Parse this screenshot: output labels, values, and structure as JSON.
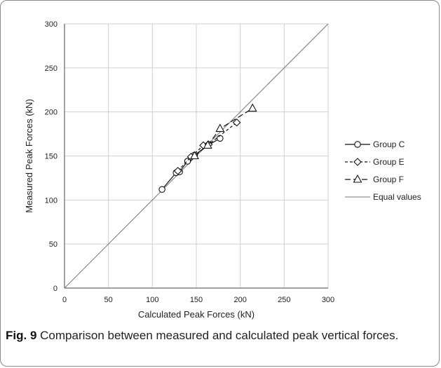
{
  "caption": {
    "label": "Fig. 9",
    "text": "Comparison between measured and calculated peak vertical forces."
  },
  "chart_data": {
    "type": "scatter",
    "title": "",
    "xlabel": "Calculated Peak Forces (kN)",
    "ylabel": "Measured Peak Forces (kN)",
    "xlim": [
      0,
      300
    ],
    "ylim": [
      0,
      300
    ],
    "xticks": [
      0,
      50,
      100,
      150,
      200,
      250,
      300
    ],
    "yticks": [
      0,
      50,
      100,
      150,
      200,
      250,
      300
    ],
    "grid": true,
    "legend_position": "right",
    "series": [
      {
        "name": "Group C",
        "marker": "circle",
        "line": "solid",
        "x": [
          111,
          127,
          131,
          140,
          148,
          163,
          177
        ],
        "y": [
          112,
          131,
          132,
          144,
          151,
          162,
          170
        ]
      },
      {
        "name": "Group E",
        "marker": "diamond",
        "line": "dashed",
        "x": [
          129,
          144,
          158,
          164,
          196
        ],
        "y": [
          133,
          149,
          162,
          163,
          188
        ]
      },
      {
        "name": "Group F",
        "marker": "triangle",
        "line": "longdash",
        "x": [
          148,
          163,
          177,
          214
        ],
        "y": [
          150,
          162,
          181,
          204
        ]
      },
      {
        "name": "Equal values",
        "marker": "none",
        "line": "thin",
        "x": [
          0,
          300
        ],
        "y": [
          0,
          300
        ]
      }
    ]
  }
}
